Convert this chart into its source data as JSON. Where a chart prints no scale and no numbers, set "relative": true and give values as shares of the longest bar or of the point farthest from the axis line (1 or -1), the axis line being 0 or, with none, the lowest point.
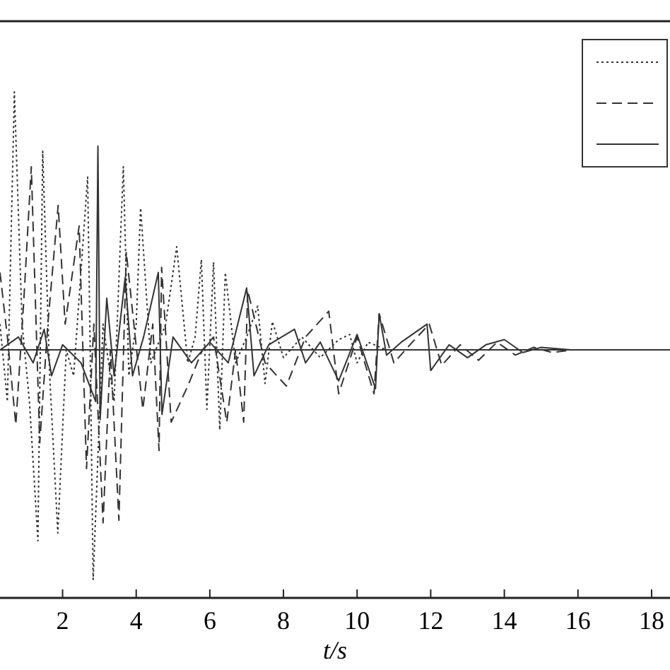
{
  "chart_data": {
    "type": "line",
    "relative": true,
    "xlabel": "t/s",
    "xlim": [
      0.3,
      18.5
    ],
    "xticks": [
      2,
      4,
      6,
      8,
      10,
      12,
      14,
      16,
      18
    ],
    "grid": false,
    "series": [
      {
        "color": "#333333",
        "line_style": "dotted",
        "x": [
          0.3,
          0.5,
          0.69,
          0.9,
          1.1,
          1.33,
          1.46,
          1.65,
          1.87,
          2.1,
          2.3,
          2.68,
          2.75,
          2.83,
          3.1,
          3.4,
          3.65,
          3.8,
          4.0,
          4.12,
          4.4,
          4.8,
          5.1,
          5.4,
          5.6,
          5.77,
          5.92,
          6.1,
          6.27,
          6.42,
          6.7,
          7.0,
          7.3,
          7.5,
          7.7,
          8.0,
          8.5,
          9.0,
          9.5,
          9.8,
          10.0,
          10.3,
          10.8
        ],
        "values": [
          0.1,
          -0.2,
          1,
          0.1,
          -0.2,
          -0.74,
          0.77,
          -0.1,
          -0.71,
          0.0,
          -0.1,
          0.67,
          0.0,
          -0.89,
          0.1,
          -0.2,
          0.71,
          -0.1,
          0.1,
          0.55,
          -0.05,
          0.1,
          0.4,
          -0.05,
          0.05,
          0.35,
          -0.23,
          0.34,
          -0.31,
          0.3,
          -0.05,
          0.05,
          0.17,
          -0.13,
          0.11,
          -0.03,
          0.05,
          -0.03,
          0.04,
          0.06,
          -0.05,
          0.03,
          0.0
        ]
      },
      {
        "color": "#333333",
        "line_style": "dashed",
        "x": [
          0.3,
          0.5,
          0.73,
          0.95,
          1.15,
          1.38,
          1.6,
          1.88,
          2.07,
          2.45,
          2.65,
          2.85,
          3.1,
          3.3,
          3.53,
          3.73,
          4.18,
          4.45,
          4.62,
          4.69,
          4.95,
          5.4,
          5.8,
          6.1,
          6.46,
          6.7,
          6.92,
          7.03,
          7.5,
          8.08,
          8.6,
          9.23,
          9.5,
          10.0,
          10.46,
          10.6,
          11.0,
          11.5,
          11.96,
          12.3,
          12.8,
          13.3,
          13.8,
          14.3,
          14.8,
          15.3,
          15.85
        ],
        "values": [
          0.3,
          0.05,
          -0.29,
          0.2,
          0.71,
          -0.36,
          0.1,
          0.56,
          0.1,
          0.48,
          -0.46,
          0.1,
          -0.67,
          0.0,
          -0.66,
          0.38,
          -0.23,
          0.1,
          -0.39,
          0.32,
          -0.28,
          -0.14,
          0.0,
          0.05,
          -0.28,
          0.0,
          -0.28,
          0.23,
          -0.05,
          -0.14,
          0.05,
          0.15,
          -0.17,
          0.05,
          -0.17,
          0.14,
          -0.05,
          0.03,
          0.1,
          -0.06,
          0.02,
          -0.04,
          0.03,
          -0.02,
          0.01,
          -0.01,
          0.0
        ]
      },
      {
        "color": "#333333",
        "line_style": "solid",
        "x": [
          0.3,
          0.8,
          1.2,
          1.5,
          1.7,
          2.0,
          2.5,
          2.9,
          2.96,
          3.02,
          3.2,
          3.4,
          3.7,
          3.9,
          4.2,
          4.6,
          4.7,
          5.0,
          5.5,
          6.0,
          6.5,
          7.0,
          7.2,
          7.6,
          8.3,
          8.6,
          9.0,
          9.5,
          10.0,
          10.5,
          10.6,
          10.8,
          11.2,
          11.9,
          12.0,
          12.5,
          13.0,
          13.5,
          14.0,
          14.5,
          15.0,
          15.8
        ],
        "values": [
          0,
          0.05,
          -0.05,
          0.08,
          -0.1,
          0.02,
          -0.05,
          -0.2,
          0.79,
          -0.27,
          0.2,
          -0.1,
          0.28,
          -0.1,
          0.05,
          0.3,
          -0.25,
          0.05,
          -0.05,
          0.03,
          -0.05,
          0.24,
          -0.1,
          0.02,
          0.08,
          -0.05,
          0.03,
          -0.12,
          0.06,
          -0.15,
          0.14,
          -0.02,
          0.03,
          0.1,
          -0.08,
          0.02,
          -0.03,
          0.02,
          0.04,
          -0.01,
          0.01,
          0
        ]
      }
    ]
  }
}
